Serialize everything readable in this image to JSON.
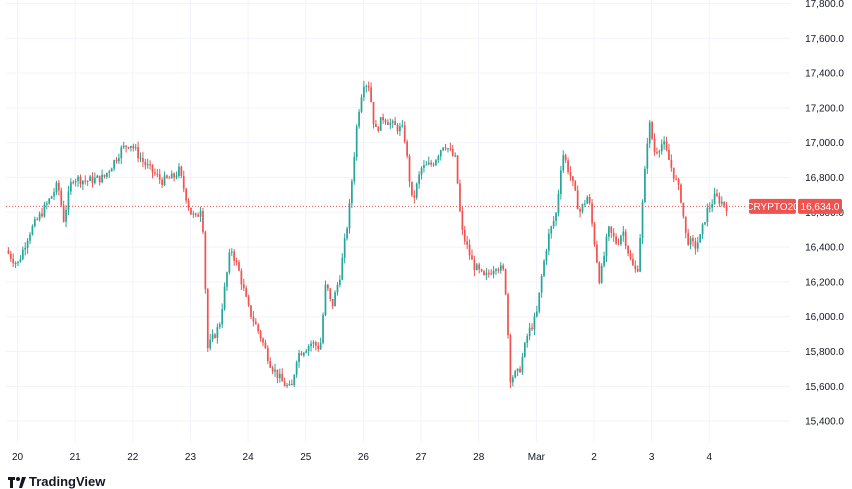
{
  "chart_data": {
    "type": "candlestick",
    "title": "",
    "xlabel": "",
    "ylabel": "",
    "y_ticks": [
      "17,800.0",
      "17,600.0",
      "17,400.0",
      "17,200.0",
      "17,000.0",
      "16,800.0",
      "16,600.0",
      "16,400.0",
      "16,200.0",
      "16,000.0",
      "15,800.0",
      "15,600.0",
      "15,400.0"
    ],
    "y_tick_values": [
      17800,
      17600,
      17400,
      17200,
      17000,
      16800,
      16600,
      16400,
      16200,
      16000,
      15800,
      15600,
      15400
    ],
    "ylim": [
      15280,
      17820
    ],
    "x_ticks": [
      "20",
      "21",
      "22",
      "23",
      "24",
      "25",
      "26",
      "27",
      "28",
      "Mar",
      "2",
      "3",
      "4"
    ],
    "x_tick_positions": [
      0,
      1,
      2,
      3,
      4,
      5,
      6,
      7,
      8,
      9,
      10,
      11,
      12
    ],
    "xlim": [
      -0.2,
      13.4
    ],
    "series_name": "CRYPTO20",
    "last_price": 16634.0,
    "last_price_label": "16,634.0",
    "grid": true,
    "colors": {
      "up": "#26a69a",
      "down": "#ef5350",
      "grid": "#f0f3fa",
      "text": "#131722"
    },
    "close_anchors": [
      [
        -0.2,
        16380
      ],
      [
        0.0,
        16300
      ],
      [
        0.2,
        16480
      ],
      [
        0.5,
        16640
      ],
      [
        0.7,
        16760
      ],
      [
        0.8,
        16560
      ],
      [
        0.95,
        16800
      ],
      [
        1.2,
        16780
      ],
      [
        1.5,
        16800
      ],
      [
        1.8,
        16960
      ],
      [
        1.95,
        17000
      ],
      [
        2.2,
        16880
      ],
      [
        2.5,
        16780
      ],
      [
        2.7,
        16800
      ],
      [
        2.8,
        16840
      ],
      [
        3.0,
        16600
      ],
      [
        3.1,
        16560
      ],
      [
        3.2,
        16650
      ],
      [
        3.3,
        15820
      ],
      [
        3.5,
        15950
      ],
      [
        3.7,
        16400
      ],
      [
        3.85,
        16250
      ],
      [
        4.0,
        16050
      ],
      [
        4.2,
        15900
      ],
      [
        4.4,
        15720
      ],
      [
        4.6,
        15620
      ],
      [
        4.75,
        15580
      ],
      [
        4.85,
        15780
      ],
      [
        5.1,
        15850
      ],
      [
        5.25,
        15820
      ],
      [
        5.35,
        16200
      ],
      [
        5.45,
        16050
      ],
      [
        5.6,
        16250
      ],
      [
        5.75,
        16600
      ],
      [
        5.9,
        17150
      ],
      [
        6.0,
        17350
      ],
      [
        6.1,
        17330
      ],
      [
        6.2,
        17060
      ],
      [
        6.35,
        17150
      ],
      [
        6.5,
        17100
      ],
      [
        6.7,
        17070
      ],
      [
        6.85,
        16650
      ],
      [
        7.0,
        16850
      ],
      [
        7.2,
        16880
      ],
      [
        7.4,
        17000
      ],
      [
        7.6,
        16900
      ],
      [
        7.7,
        16500
      ],
      [
        7.9,
        16300
      ],
      [
        8.1,
        16220
      ],
      [
        8.3,
        16300
      ],
      [
        8.45,
        16250
      ],
      [
        8.55,
        15650
      ],
      [
        8.7,
        15680
      ],
      [
        8.85,
        15900
      ],
      [
        9.0,
        16000
      ],
      [
        9.1,
        16250
      ],
      [
        9.2,
        16450
      ],
      [
        9.35,
        16600
      ],
      [
        9.45,
        16950
      ],
      [
        9.6,
        16800
      ],
      [
        9.75,
        16600
      ],
      [
        9.9,
        16700
      ],
      [
        10.0,
        16450
      ],
      [
        10.1,
        16200
      ],
      [
        10.25,
        16500
      ],
      [
        10.4,
        16420
      ],
      [
        10.5,
        16500
      ],
      [
        10.65,
        16300
      ],
      [
        10.75,
        16250
      ],
      [
        10.85,
        16680
      ],
      [
        10.95,
        17130
      ],
      [
        11.05,
        16950
      ],
      [
        11.2,
        17000
      ],
      [
        11.35,
        16850
      ],
      [
        11.5,
        16700
      ],
      [
        11.6,
        16450
      ],
      [
        11.75,
        16400
      ],
      [
        11.85,
        16460
      ],
      [
        11.95,
        16600
      ],
      [
        12.1,
        16690
      ],
      [
        12.3,
        16634
      ]
    ]
  }
}
